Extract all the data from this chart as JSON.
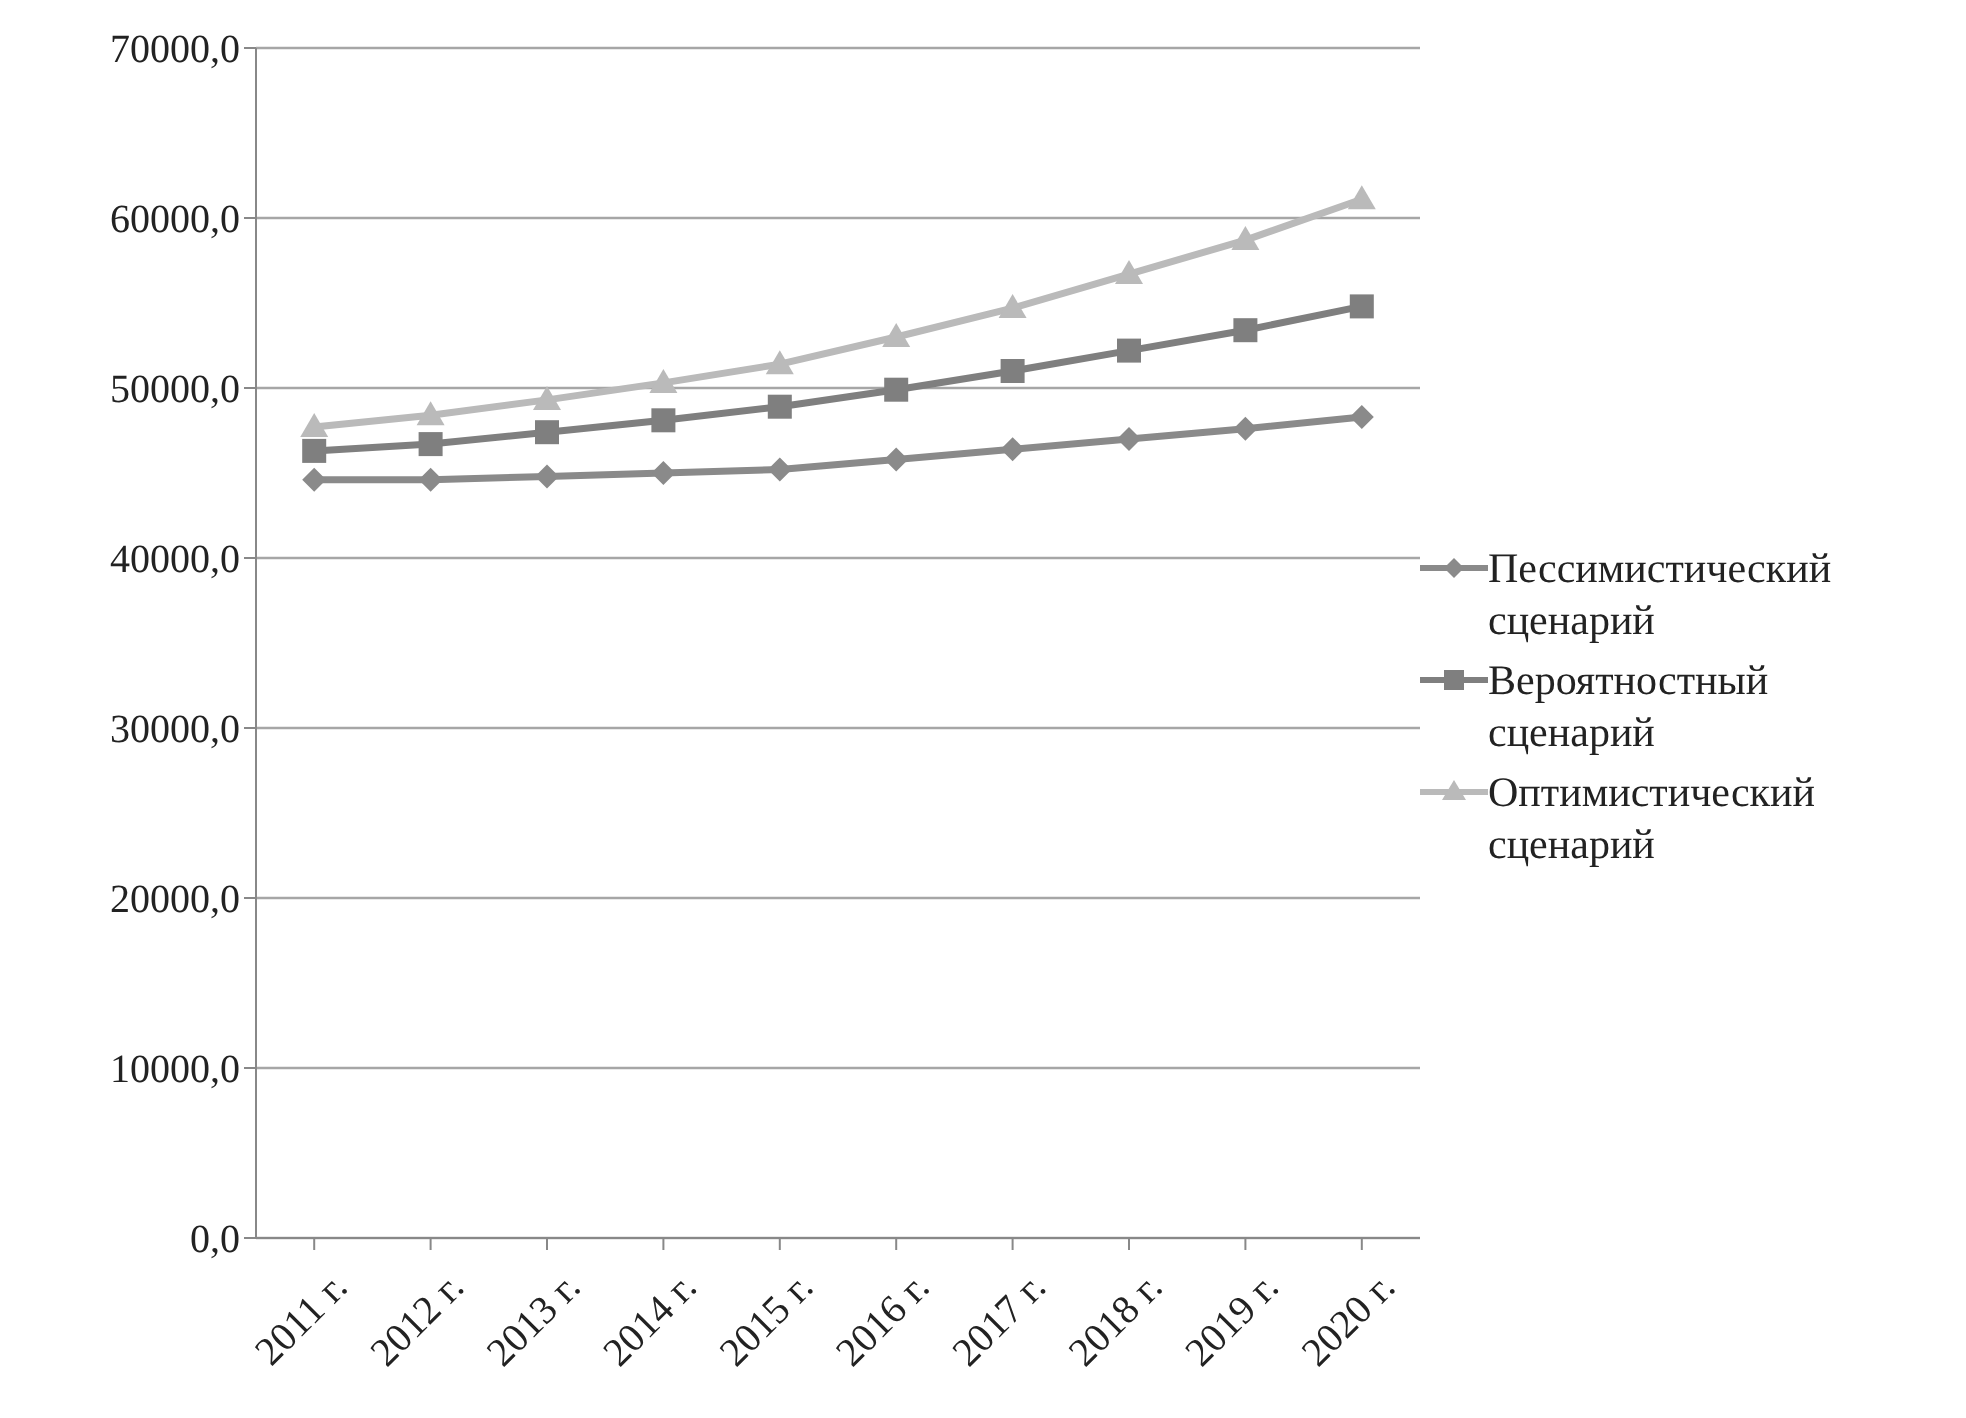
{
  "chart_data": {
    "type": "line",
    "categories": [
      "2011 г.",
      "2012 г.",
      "2013 г.",
      "2014 г.",
      "2015 г.",
      "2016 г.",
      "2017 г.",
      "2018 г.",
      "2019 г.",
      "2020 г."
    ],
    "series": [
      {
        "name": "Пессимистический сценарий",
        "color": "#8a8a8a",
        "marker": "diamond",
        "values": [
          44600,
          44600,
          44800,
          45000,
          45200,
          45800,
          46400,
          47000,
          47600,
          48300
        ]
      },
      {
        "name": "Вероятностный сценарий",
        "color": "#7f7f7f",
        "marker": "square",
        "values": [
          46300,
          46700,
          47400,
          48100,
          48900,
          49900,
          51000,
          52200,
          53400,
          54800
        ]
      },
      {
        "name": "Оптимистический сценарий",
        "color": "#bababa",
        "marker": "triangle",
        "values": [
          47700,
          48400,
          49300,
          50300,
          51400,
          53000,
          54700,
          56700,
          58700,
          61100
        ]
      }
    ],
    "ylim": [
      0,
      70000
    ],
    "yticks": [
      {
        "value": 0,
        "label": "0,0"
      },
      {
        "value": 10000,
        "label": "10000,0"
      },
      {
        "value": 20000,
        "label": "20000,0"
      },
      {
        "value": 30000,
        "label": "30000,0"
      },
      {
        "value": 40000,
        "label": "40000,0"
      },
      {
        "value": 50000,
        "label": "50000,0"
      },
      {
        "value": 60000,
        "label": "60000,0"
      },
      {
        "value": 70000,
        "label": "70000,0"
      }
    ],
    "grid": "y",
    "legend": "right",
    "line_style": "solid"
  }
}
